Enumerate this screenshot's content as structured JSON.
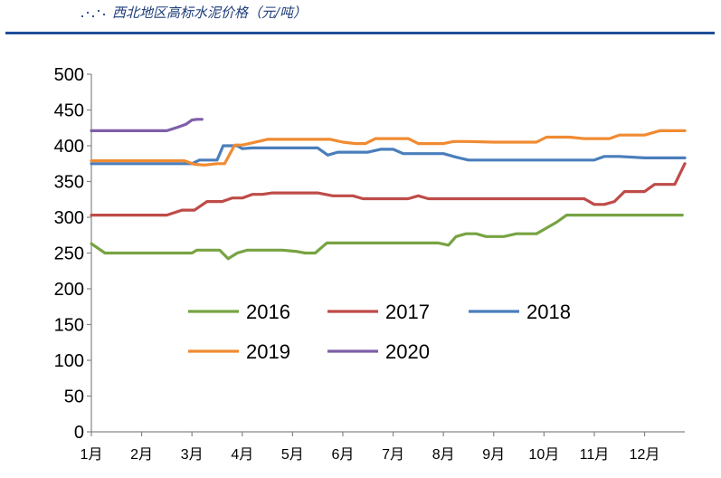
{
  "title": "西北地区高标水泥价格（元/吨）",
  "chart_data": {
    "type": "line",
    "title": "西北地区高标水泥价格（元/吨）",
    "xlabel": "",
    "ylabel": "",
    "ylim": [
      0,
      500
    ],
    "yticks": [
      0,
      50,
      100,
      150,
      200,
      250,
      300,
      350,
      400,
      450,
      500
    ],
    "xlim": [
      1,
      12.8
    ],
    "xticks": [
      1,
      2,
      3,
      4,
      5,
      6,
      7,
      8,
      9,
      10,
      11,
      12
    ],
    "xtick_labels": [
      "1月",
      "2月",
      "3月",
      "4月",
      "5月",
      "6月",
      "7月",
      "8月",
      "9月",
      "10月",
      "11月",
      "12月"
    ],
    "grid": false,
    "legend_position": "center",
    "series": [
      {
        "name": "2016",
        "color": "#77A342",
        "x": [
          1.0,
          1.27,
          1.55,
          2.0,
          2.5,
          2.88,
          3.0,
          3.1,
          3.3,
          3.55,
          3.72,
          3.9,
          4.1,
          4.4,
          4.8,
          5.1,
          5.25,
          5.45,
          5.68,
          6.0,
          6.5,
          7.0,
          7.5,
          7.7,
          7.9,
          8.1,
          8.25,
          8.45,
          8.65,
          8.85,
          9.0,
          9.2,
          9.45,
          9.6,
          9.85,
          10.05,
          10.25,
          10.45,
          11.0,
          11.5,
          12.0,
          12.5,
          12.75
        ],
        "y": [
          263,
          250,
          250,
          250,
          250,
          250,
          250,
          254,
          254,
          254,
          242,
          250,
          254,
          254,
          254,
          252,
          250,
          250,
          264,
          264,
          264,
          264,
          264,
          264,
          264,
          261,
          273,
          277,
          277,
          273,
          273,
          273,
          277,
          277,
          277,
          285,
          293,
          303,
          303,
          303,
          303,
          303,
          303
        ]
      },
      {
        "name": "2017",
        "color": "#BE4B48",
        "x": [
          1.0,
          1.5,
          2.0,
          2.5,
          2.8,
          3.05,
          3.3,
          3.6,
          3.8,
          4.0,
          4.2,
          4.4,
          4.6,
          4.8,
          5.0,
          5.5,
          5.8,
          6.2,
          6.4,
          6.8,
          7.0,
          7.3,
          7.5,
          7.7,
          7.9,
          8.2,
          8.5,
          9.0,
          9.5,
          10.0,
          10.5,
          10.8,
          11.0,
          11.2,
          11.4,
          11.6,
          11.8,
          12.0,
          12.2,
          12.4,
          12.6,
          12.8
        ],
        "y": [
          303,
          303,
          303,
          303,
          310,
          310,
          322,
          322,
          327,
          327,
          332,
          332,
          334,
          334,
          334,
          334,
          330,
          330,
          326,
          326,
          326,
          326,
          330,
          326,
          326,
          326,
          326,
          326,
          326,
          326,
          326,
          326,
          318,
          318,
          322,
          336,
          336,
          336,
          346,
          346,
          346,
          375
        ]
      },
      {
        "name": "2018",
        "color": "#4A7EBB",
        "x": [
          1.0,
          1.5,
          2.0,
          2.5,
          2.85,
          3.0,
          3.15,
          3.3,
          3.5,
          3.62,
          3.75,
          3.9,
          4.0,
          4.2,
          4.6,
          5.0,
          5.5,
          5.7,
          5.9,
          6.2,
          6.5,
          6.75,
          7.0,
          7.2,
          7.5,
          8.0,
          8.25,
          8.5,
          9.0,
          9.5,
          10.0,
          10.5,
          10.8,
          11.0,
          11.2,
          11.5,
          12.0,
          12.5,
          12.8
        ],
        "y": [
          375,
          375,
          375,
          375,
          375,
          375,
          380,
          380,
          380,
          400,
          400,
          400,
          396,
          397,
          397,
          397,
          397,
          387,
          391,
          391,
          391,
          395,
          395,
          389,
          389,
          389,
          384,
          380,
          380,
          380,
          380,
          380,
          380,
          380,
          385,
          385,
          383,
          383,
          383
        ]
      },
      {
        "name": "2019",
        "color": "#F08B32",
        "x": [
          1.0,
          1.5,
          2.0,
          2.5,
          2.85,
          3.05,
          3.25,
          3.5,
          3.65,
          3.85,
          4.0,
          4.2,
          4.5,
          5.0,
          5.5,
          5.75,
          6.0,
          6.25,
          6.45,
          6.65,
          7.0,
          7.3,
          7.5,
          7.8,
          8.0,
          8.2,
          8.5,
          9.0,
          9.5,
          9.85,
          10.05,
          10.3,
          10.5,
          10.8,
          11.0,
          11.3,
          11.5,
          11.8,
          12.0,
          12.3,
          12.5,
          12.8
        ],
        "y": [
          379,
          379,
          379,
          379,
          379,
          374,
          373,
          375,
          375,
          401,
          401,
          404,
          409,
          409,
          409,
          409,
          405,
          403,
          403,
          410,
          410,
          410,
          403,
          403,
          403,
          406,
          406,
          405,
          405,
          405,
          412,
          412,
          412,
          410,
          410,
          410,
          415,
          415,
          415,
          421,
          421,
          421
        ]
      },
      {
        "name": "2020",
        "color": "#7F5FA8",
        "x": [
          1.0,
          1.5,
          2.0,
          2.5,
          2.72,
          2.88,
          3.0,
          3.1,
          3.2
        ],
        "y": [
          421,
          421,
          421,
          421,
          426,
          430,
          436,
          437,
          437
        ]
      }
    ]
  }
}
